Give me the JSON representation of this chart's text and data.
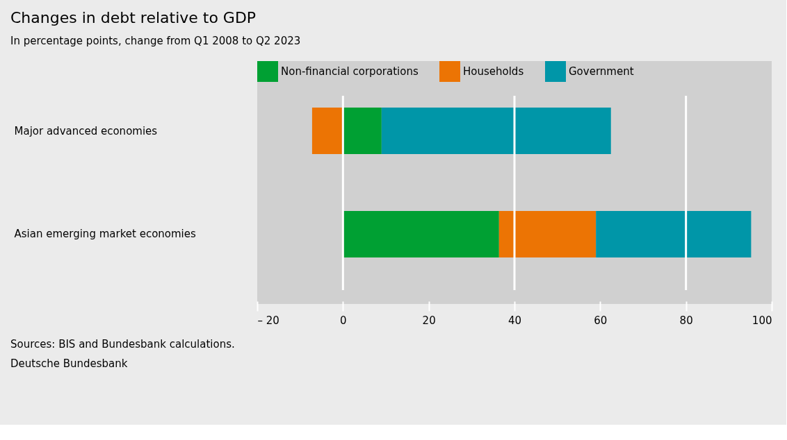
{
  "chart_data": {
    "type": "bar",
    "orientation": "horizontal",
    "stacked": true,
    "title": "Changes in debt relative to GDP",
    "subtitle": "In percentage points, change from Q1 2008 to Q2 2023",
    "categories": [
      "Major advanced economies",
      "Asian emerging market economies"
    ],
    "series": [
      {
        "name": "Non-financial corporations",
        "color": "#00a033",
        "values": [
          9.0,
          36.4
        ]
      },
      {
        "name": "Households",
        "color": "#ec7404",
        "values": [
          -7.2,
          22.6
        ]
      },
      {
        "name": "Government",
        "color": "#0096a8",
        "values": [
          53.5,
          36.2
        ]
      }
    ],
    "xlim": [
      -20,
      100
    ],
    "xticks": [
      {
        "value": -20,
        "label": "– 20"
      },
      0,
      20,
      40,
      60,
      80,
      100
    ],
    "grid": false,
    "legend": "top",
    "ref_lines": [
      {
        "axis": "x",
        "value": 0,
        "color": "#ffffff"
      },
      {
        "axis": "x",
        "value": 40,
        "color": "#ffffff"
      },
      {
        "axis": "x",
        "value": 80,
        "color": "#ffffff"
      }
    ],
    "annotations": [
      "Sources: BIS and Bundesbank calculations.",
      "Deutsche Bundesbank"
    ]
  }
}
